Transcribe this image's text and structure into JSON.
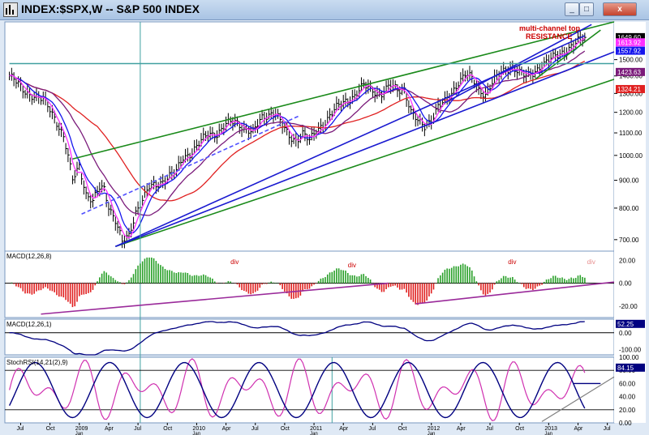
{
  "window": {
    "title": "INDEX:$SPX,W -- S&P 500 INDEX",
    "minimize_label": "_",
    "maximize_label": "□",
    "close_label": "x"
  },
  "colors": {
    "price_bar": "#000000",
    "ma_red": "#e02020",
    "ma_purple": "#7a1a7a",
    "ma_blue": "#1515ee",
    "ma_magenta": "#ff30ff",
    "channel_green": "#1a8a1a",
    "channel_blue": "#1a1ad0",
    "macd_pos": "#2aa02a",
    "macd_neg": "#e02020",
    "trend_purple": "#9a2a9a",
    "stoch_pink": "#d030b0",
    "stoch_navy": "#000080",
    "cursor_teal": "#40a0a0"
  },
  "chart_data": [
    {
      "type": "line",
      "panel": "price",
      "title": "S&P 500 INDEX",
      "scale": "log",
      "ylim": [
        660,
        1760
      ],
      "y_ticks": [
        700,
        800,
        900,
        1000,
        1100,
        1200,
        1300,
        1400,
        1500
      ],
      "x_tick_labels": [
        "Jul",
        "Oct",
        "2009",
        "Apr",
        "Jul",
        "Oct",
        "2010",
        "Apr",
        "Jul",
        "Oct",
        "2011",
        "Apr",
        "Jul",
        "Oct",
        "2012",
        "Apr",
        "Jul",
        "Oct",
        "2013",
        "Apr",
        "Jul"
      ],
      "x_tick_sublabels": [
        "",
        "",
        "Jan",
        "",
        "",
        "",
        "Jan",
        "",
        "",
        "",
        "Jan",
        "",
        "",
        "",
        "Jan",
        "",
        "",
        "",
        "Jan",
        "",
        ""
      ],
      "price_week_index_range": [
        0,
        255
      ],
      "price_points": [
        [
          0,
          1400
        ],
        [
          6,
          1320
        ],
        [
          12,
          1280
        ],
        [
          16,
          1250
        ],
        [
          20,
          1180
        ],
        [
          24,
          1080
        ],
        [
          28,
          900
        ],
        [
          31,
          960
        ],
        [
          34,
          850
        ],
        [
          37,
          820
        ],
        [
          40,
          870
        ],
        [
          42,
          870
        ],
        [
          44,
          810
        ],
        [
          47,
          760
        ],
        [
          50,
          690
        ],
        [
          53,
          710
        ],
        [
          56,
          790
        ],
        [
          59,
          830
        ],
        [
          62,
          870
        ],
        [
          65,
          880
        ],
        [
          68,
          900
        ],
        [
          71,
          920
        ],
        [
          74,
          930
        ],
        [
          77,
          990
        ],
        [
          80,
          1010
        ],
        [
          84,
          1050
        ],
        [
          88,
          1090
        ],
        [
          92,
          1100
        ],
        [
          96,
          1140
        ],
        [
          100,
          1150
        ],
        [
          104,
          1130
        ],
        [
          108,
          1100
        ],
        [
          112,
          1170
        ],
        [
          116,
          1200
        ],
        [
          118,
          1200
        ],
        [
          121,
          1130
        ],
        [
          124,
          1080
        ],
        [
          127,
          1070
        ],
        [
          130,
          1100
        ],
        [
          133,
          1060
        ],
        [
          137,
          1120
        ],
        [
          141,
          1170
        ],
        [
          145,
          1220
        ],
        [
          149,
          1260
        ],
        [
          153,
          1290
        ],
        [
          157,
          1340
        ],
        [
          161,
          1320
        ],
        [
          165,
          1300
        ],
        [
          169,
          1340
        ],
        [
          172,
          1320
        ],
        [
          175,
          1330
        ],
        [
          178,
          1200
        ],
        [
          181,
          1150
        ],
        [
          184,
          1130
        ],
        [
          187,
          1170
        ],
        [
          190,
          1230
        ],
        [
          193,
          1250
        ],
        [
          196,
          1300
        ],
        [
          199,
          1370
        ],
        [
          202,
          1410
        ],
        [
          205,
          1380
        ],
        [
          208,
          1320
        ],
        [
          211,
          1300
        ],
        [
          214,
          1360
        ],
        [
          217,
          1400
        ],
        [
          220,
          1440
        ],
        [
          223,
          1460
        ],
        [
          226,
          1420
        ],
        [
          229,
          1390
        ],
        [
          232,
          1420
        ],
        [
          235,
          1460
        ],
        [
          238,
          1480
        ],
        [
          241,
          1510
        ],
        [
          244,
          1540
        ],
        [
          247,
          1570
        ],
        [
          250,
          1590
        ],
        [
          253,
          1630
        ],
        [
          255,
          1650
        ]
      ],
      "price_labels": [
        {
          "text": "1649.60",
          "bg": "#000000",
          "fg": "#ffffff"
        },
        {
          "text": "1613.92",
          "bg": "#ff30ff",
          "fg": "#ffffff"
        },
        {
          "text": "1557.92",
          "bg": "#1515ee",
          "fg": "#ffffff"
        },
        {
          "text": "1423.63",
          "bg": "#7a1a7a",
          "fg": "#ffffff"
        },
        {
          "text": "1324.21",
          "bg": "#e02020",
          "fg": "#ffffff"
        }
      ],
      "annotations": [
        {
          "text": "multi-channel top",
          "color": "#cc0000"
        },
        {
          "text": "RESISTANCE",
          "color": "#cc0000"
        }
      ]
    },
    {
      "type": "bar",
      "panel": "macd_histogram",
      "title": "MACD(12,26,8)",
      "ylim": [
        -30,
        28
      ],
      "y_ticks": [
        -20,
        0,
        20
      ],
      "y_tick_labels": [
        "-20.00",
        "0.00",
        "20.00"
      ],
      "labels": [
        "div",
        "div",
        "div",
        "div"
      ]
    },
    {
      "type": "line",
      "panel": "macd_line",
      "title": "MACD(12,26,1)",
      "ylim": [
        -130,
        80
      ],
      "y_ticks": [
        -100,
        0
      ],
      "y_tick_labels": [
        "-100.00",
        "0.00"
      ],
      "last_value_label": "52.25"
    },
    {
      "type": "line",
      "panel": "stoch_rsi",
      "title": "StochRSI(14,21(2),9)",
      "ylim": [
        0,
        100
      ],
      "y_ticks": [
        0,
        20,
        40,
        60,
        80,
        100
      ],
      "y_tick_labels": [
        "0.00",
        "20.00",
        "40.00",
        "60.00",
        "80.00",
        "100.00"
      ],
      "last_value_label": "84.15"
    }
  ]
}
